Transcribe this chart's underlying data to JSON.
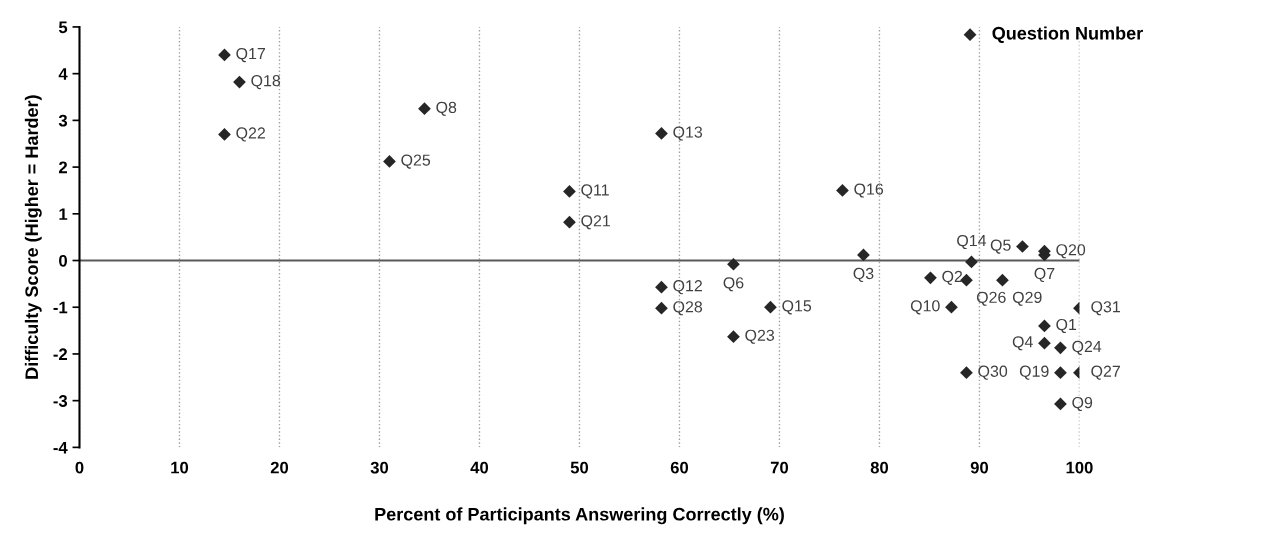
{
  "chart_data": {
    "type": "scatter",
    "xlabel": "Percent of Participants Answering Correctly (%)",
    "ylabel": "Difficulty Score (Higher = Harder)",
    "xlim": [
      0,
      100
    ],
    "ylim": [
      -4,
      5
    ],
    "xticks": [
      0,
      10,
      20,
      30,
      40,
      50,
      60,
      70,
      80,
      90,
      100
    ],
    "yticks": [
      -4,
      -3,
      -2,
      -1,
      0,
      1,
      2,
      3,
      4,
      5
    ],
    "grid": "x",
    "marker": "diamond",
    "legend": "top right",
    "ref_lines": [
      {
        "axis": "y",
        "value": 0,
        "color": "#595959",
        "line_style": "solid"
      }
    ],
    "series": [
      {
        "name": "Question Number",
        "color": "#262626",
        "x": [
          14.5,
          16,
          14.5,
          34.5,
          31,
          58.2,
          49,
          49,
          76.3,
          78.4,
          65.4,
          94.3,
          96.5,
          96.5,
          89.2,
          85.1,
          88.7,
          92.3,
          58.2,
          58.2,
          69.1,
          65.4,
          87.2,
          100,
          96.5,
          96.5,
          98.1,
          88.7,
          98.1,
          100,
          98.1
        ],
        "values": [
          4.4,
          3.82,
          2.7,
          3.25,
          2.12,
          2.72,
          1.48,
          0.82,
          1.5,
          0.12,
          -0.08,
          0.3,
          0.2,
          0.12,
          -0.03,
          -0.37,
          -0.42,
          -0.42,
          -0.57,
          -1.02,
          -1.0,
          -1.63,
          -1.0,
          -1.02,
          -1.4,
          -1.77,
          -1.87,
          -2.4,
          -2.4,
          -2.4,
          -3.07
        ]
      }
    ],
    "annotations": [
      {
        "text": "Q17",
        "x": 14.5,
        "y": 4.4
      },
      {
        "text": "Q18",
        "x": 16,
        "y": 3.82
      },
      {
        "text": "Q22",
        "x": 14.5,
        "y": 2.7
      },
      {
        "text": "Q8",
        "x": 34.5,
        "y": 3.25
      },
      {
        "text": "Q25",
        "x": 31,
        "y": 2.12
      },
      {
        "text": "Q13",
        "x": 58.2,
        "y": 2.72
      },
      {
        "text": "Q11",
        "x": 49,
        "y": 1.48
      },
      {
        "text": "Q21",
        "x": 49,
        "y": 0.82
      },
      {
        "text": "Q16",
        "x": 76.3,
        "y": 1.5
      },
      {
        "text": "Q3",
        "x": 78.4,
        "y": 0.12
      },
      {
        "text": "Q6",
        "x": 65.4,
        "y": -0.08
      },
      {
        "text": "Q5",
        "x": 94.3,
        "y": 0.3
      },
      {
        "text": "Q20",
        "x": 96.5,
        "y": 0.2
      },
      {
        "text": "Q7",
        "x": 96.5,
        "y": 0.12
      },
      {
        "text": "Q14",
        "x": 89.2,
        "y": -0.03
      },
      {
        "text": "Q2",
        "x": 85.1,
        "y": -0.37
      },
      {
        "text": "Q26",
        "x": 88.7,
        "y": -0.42
      },
      {
        "text": "Q29",
        "x": 92.3,
        "y": -0.42
      },
      {
        "text": "Q12",
        "x": 58.2,
        "y": -0.57
      },
      {
        "text": "Q28",
        "x": 58.2,
        "y": -1.02
      },
      {
        "text": "Q15",
        "x": 69.1,
        "y": -1.0
      },
      {
        "text": "Q23",
        "x": 65.4,
        "y": -1.63
      },
      {
        "text": "Q10",
        "x": 87.2,
        "y": -1.0
      },
      {
        "text": "Q31",
        "x": 100,
        "y": -1.02
      },
      {
        "text": "Q1",
        "x": 96.5,
        "y": -1.4
      },
      {
        "text": "Q4",
        "x": 96.5,
        "y": -1.77
      },
      {
        "text": "Q24",
        "x": 98.1,
        "y": -1.87
      },
      {
        "text": "Q30",
        "x": 88.7,
        "y": -2.4
      },
      {
        "text": "Q19",
        "x": 98.1,
        "y": -2.4
      },
      {
        "text": "Q27",
        "x": 100,
        "y": -2.4
      },
      {
        "text": "Q9",
        "x": 98.1,
        "y": -3.07
      }
    ]
  }
}
